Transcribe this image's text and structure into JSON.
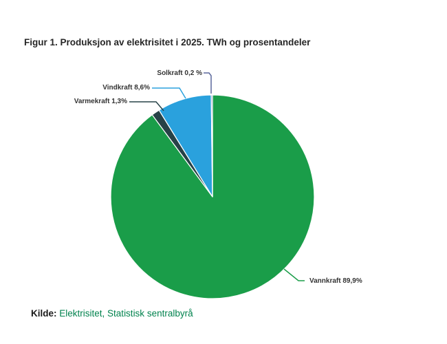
{
  "page": {
    "background": "#ffffff"
  },
  "title": {
    "text": "Figur 1. Produksjon av elektrisitet i 2025. TWh og prosentandeler",
    "color": "#262626"
  },
  "source": {
    "prefix": "Kilde:",
    "text": "Elektrisitet, Statistisk sentralbyrå",
    "link_color": "#00824d"
  },
  "chart_data": {
    "type": "pie",
    "title": "Figur 1. Produksjon av elektrisitet i 2025. TWh og prosentandeler",
    "unit": "percent",
    "direction": "clockwise",
    "start_angle_deg": 0,
    "legend_position": "none",
    "label_style": "outside labels with connector lines matching slice color",
    "series": [
      {
        "name": "Vannkraft",
        "value": 89.9,
        "label": "Vannkraft 89,9%",
        "color": "#1a9d49"
      },
      {
        "name": "Varmekraft",
        "value": 1.3,
        "label": "Varmekraft 1,3%",
        "color": "#274247"
      },
      {
        "name": "Vindkraft",
        "value": 8.6,
        "label": "Vindkraft 8,6%",
        "color": "#2aa1dd"
      },
      {
        "name": "Solkraft",
        "value": 0.2,
        "label": "Solkraft 0,2 %",
        "color": "#5a679b"
      }
    ]
  }
}
